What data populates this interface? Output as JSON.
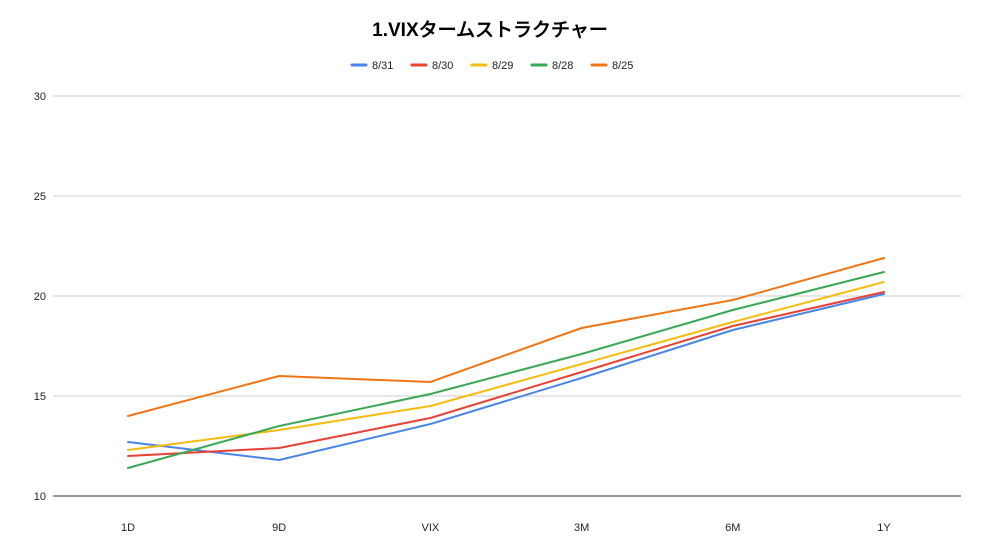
{
  "chart_data": {
    "type": "line",
    "title": "1.VIXタームストラクチャー",
    "xlabel": "",
    "ylabel": "",
    "categories": [
      "1D",
      "9D",
      "VIX",
      "3M",
      "6M",
      "1Y"
    ],
    "ylim": [
      10,
      30
    ],
    "yticks": [
      10,
      15,
      20,
      25,
      30
    ],
    "grid": true,
    "legend_position": "top-center",
    "series": [
      {
        "name": "8/31",
        "color": "#4a86e8",
        "values": [
          12.7,
          11.8,
          13.6,
          15.9,
          18.3,
          20.1
        ]
      },
      {
        "name": "8/30",
        "color": "#e84235",
        "values": [
          12.0,
          12.4,
          13.9,
          16.2,
          18.5,
          20.2
        ]
      },
      {
        "name": "8/29",
        "color": "#f5bc0f",
        "values": [
          12.3,
          13.3,
          14.5,
          16.6,
          18.7,
          20.7
        ]
      },
      {
        "name": "8/28",
        "color": "#3aa856",
        "values": [
          11.4,
          13.5,
          15.1,
          17.1,
          19.3,
          21.2
        ]
      },
      {
        "name": "8/25",
        "color": "#f07515",
        "values": [
          14.0,
          16.0,
          15.7,
          18.4,
          19.8,
          21.9
        ]
      }
    ]
  }
}
